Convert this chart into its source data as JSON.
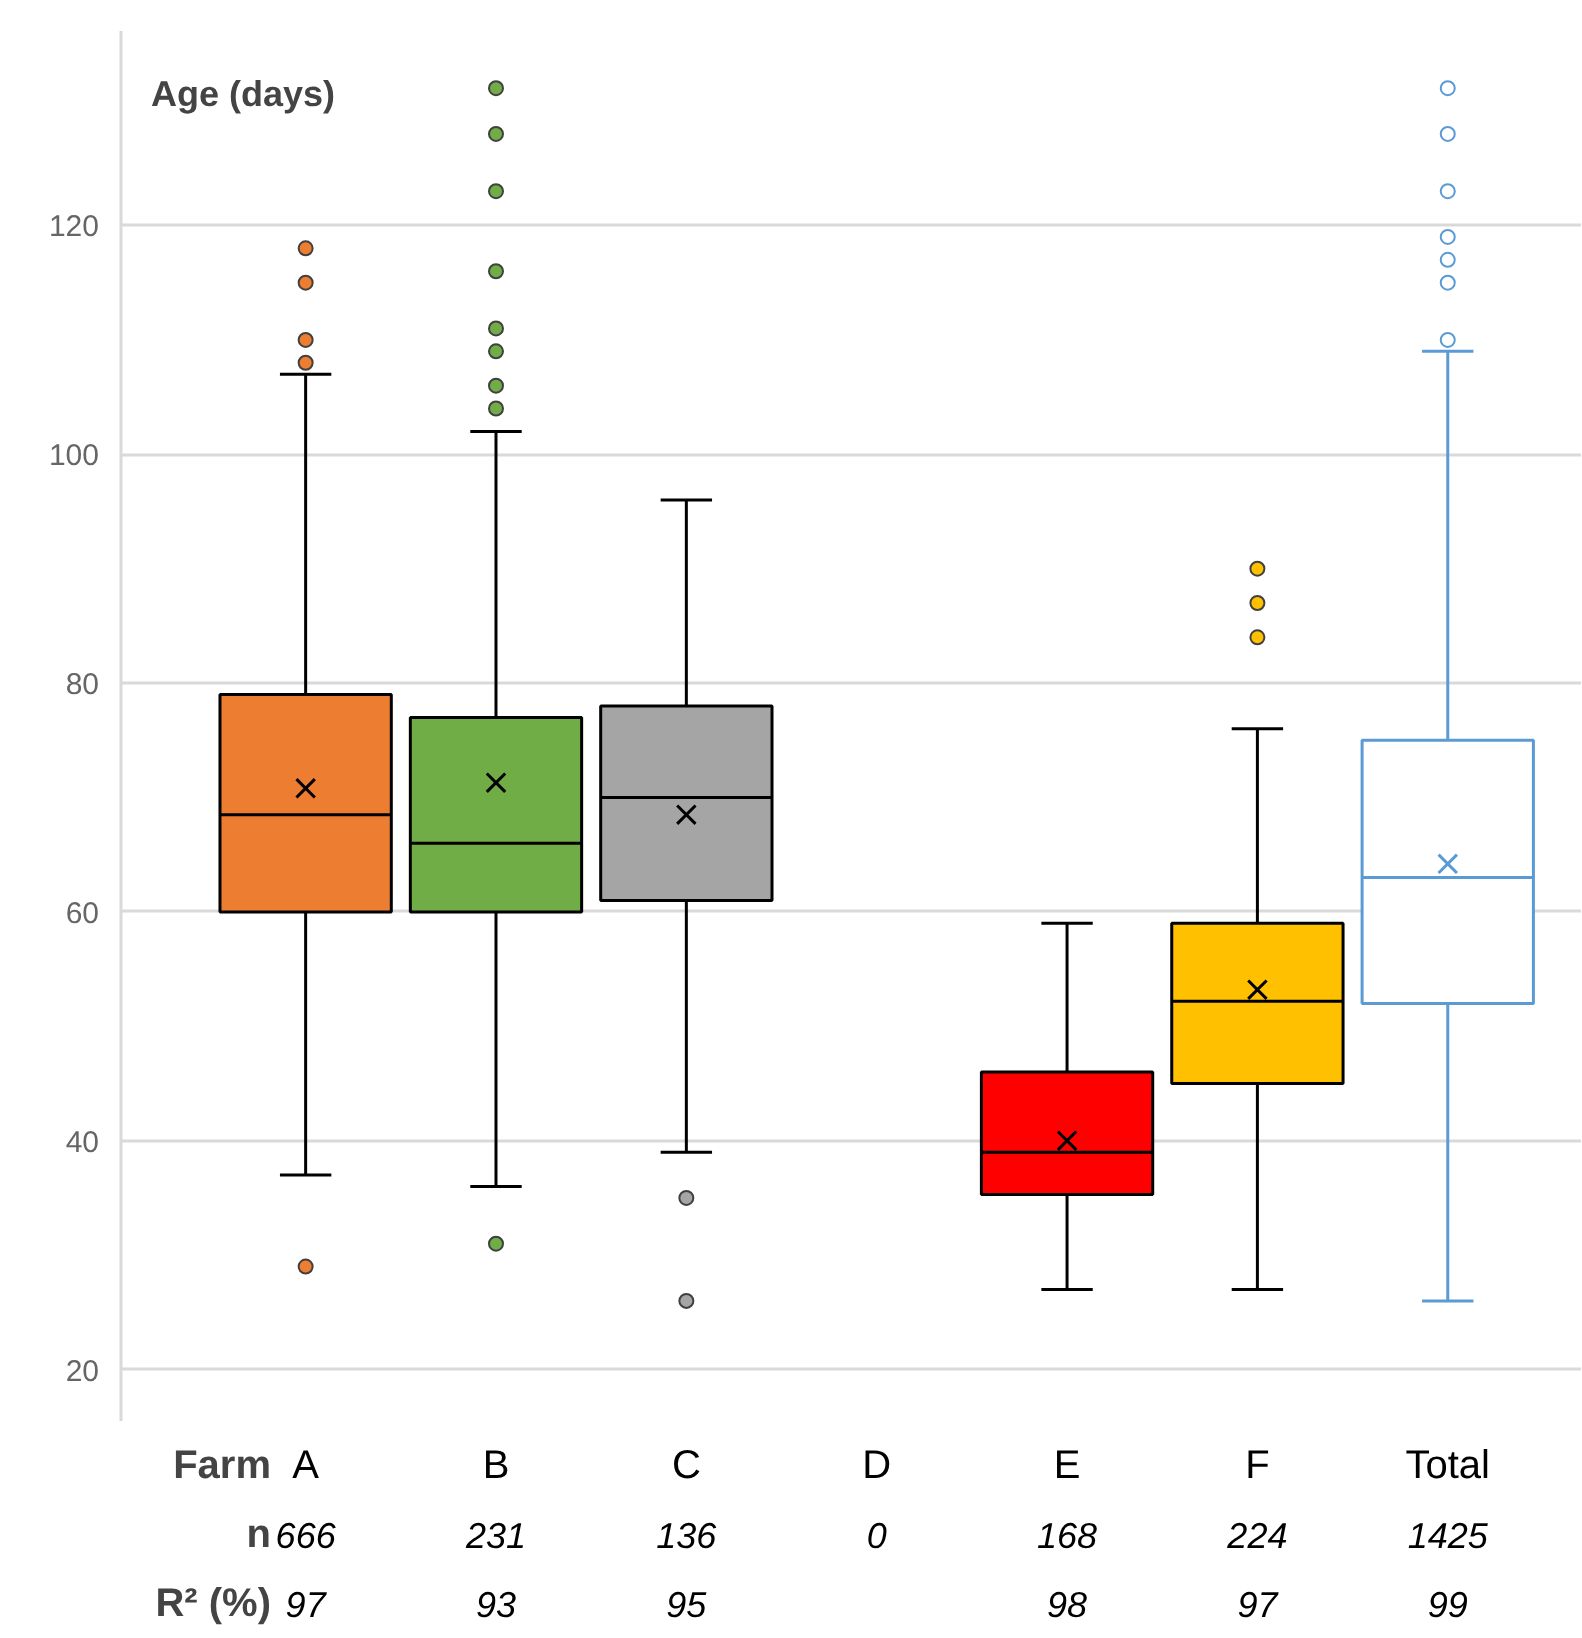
{
  "chart_data": {
    "type": "box",
    "xlabel": "Farm",
    "ylabel": "Age (days)",
    "categories": [
      "A",
      "B",
      "C",
      "D",
      "E",
      "F",
      "Total"
    ],
    "ylim": [
      15.5,
      137
    ],
    "yticks": [
      20,
      40,
      60,
      80,
      100,
      120
    ],
    "grid": "y",
    "series": [
      {
        "colors": [
          "#ed7d31",
          "#70ad47",
          "#a5a5a5",
          null,
          "#ff0000",
          "#ffc000",
          null
        ],
        "boxes": [
          {
            "low": 37,
            "q1": 60,
            "median": 68.5,
            "q3": 79,
            "high": 107,
            "mean": 70.8,
            "outliers": [
              29,
              108,
              110,
              115,
              118
            ]
          },
          {
            "low": 36,
            "q1": 60,
            "median": 66,
            "q3": 77,
            "high": 102,
            "mean": 71.3,
            "outliers": [
              31,
              104,
              106,
              109,
              111,
              116,
              123,
              128,
              132
            ]
          },
          {
            "low": 39,
            "q1": 61,
            "median": 70,
            "q3": 78,
            "high": 96,
            "mean": 68.5,
            "outliers": [
              26,
              35
            ]
          },
          null,
          {
            "low": 27,
            "q1": 35.3,
            "median": 39,
            "q3": 46,
            "high": 59,
            "mean": 40
          },
          {
            "low": 27,
            "q1": 45,
            "median": 52.2,
            "q3": 59,
            "high": 76,
            "mean": 53.2,
            "outliers": [
              84,
              87,
              90
            ]
          },
          null
        ]
      },
      {
        "color": "#5b9bd5",
        "boxes": [
          null,
          null,
          null,
          null,
          null,
          null,
          {
            "low": 26,
            "q1": 52,
            "median": 63,
            "q3": 75,
            "high": 109,
            "mean": 64.2,
            "outliers": [
              110,
              115,
              117,
              119,
              123,
              128,
              132
            ]
          }
        ]
      }
    ],
    "annotations": [
      "n",
      "666",
      "231",
      "136",
      "0",
      "168",
      "224",
      "1425",
      "R² (%)",
      "97",
      "93",
      "95",
      "98",
      "97",
      "99"
    ]
  }
}
